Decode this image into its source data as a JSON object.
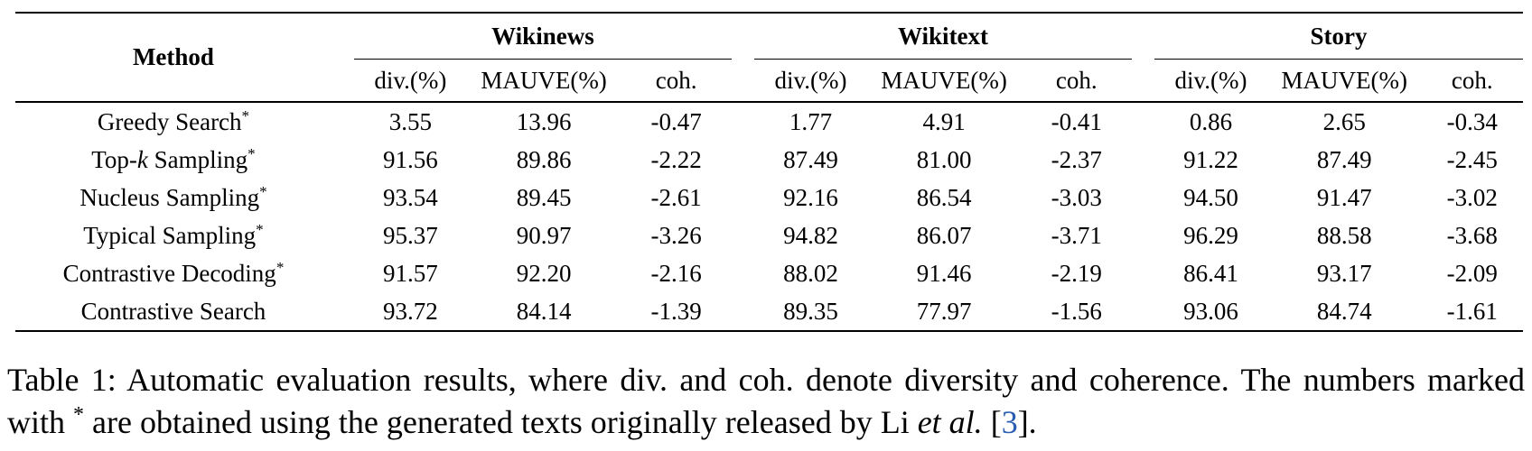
{
  "table": {
    "method_header": "Method",
    "groups": [
      "Wikinews",
      "Wikitext",
      "Story"
    ],
    "sub_headers": [
      "div.(%)",
      "MAUVE(%)",
      "coh."
    ],
    "rows": [
      {
        "method": "Greedy Search",
        "star": "*",
        "values": [
          "3.55",
          "13.96",
          "-0.47",
          "1.77",
          "4.91",
          "-0.41",
          "0.86",
          "2.65",
          "-0.34"
        ],
        "bold": [
          false,
          false,
          true,
          false,
          false,
          true,
          false,
          false,
          true
        ]
      },
      {
        "method": "Top-k Sampling",
        "star": "*",
        "values": [
          "91.56",
          "89.86",
          "-2.22",
          "87.49",
          "81.00",
          "-2.37",
          "91.22",
          "87.49",
          "-2.45"
        ],
        "bold": [
          false,
          false,
          false,
          false,
          false,
          false,
          false,
          false,
          false
        ]
      },
      {
        "method": "Nucleus Sampling",
        "star": "*",
        "values": [
          "93.54",
          "89.45",
          "-2.61",
          "92.16",
          "86.54",
          "-3.03",
          "94.50",
          "91.47",
          "-3.02"
        ],
        "bold": [
          false,
          false,
          false,
          false,
          false,
          false,
          false,
          false,
          false
        ]
      },
      {
        "method": "Typical Sampling",
        "star": "*",
        "values": [
          "95.37",
          "90.97",
          "-3.26",
          "94.82",
          "86.07",
          "-3.71",
          "96.29",
          "88.58",
          "-3.68"
        ],
        "bold": [
          true,
          false,
          false,
          true,
          false,
          false,
          true,
          false,
          false
        ]
      },
      {
        "method": "Contrastive Decoding",
        "star": "*",
        "values": [
          "91.57",
          "92.20",
          "-2.16",
          "88.02",
          "91.46",
          "-2.19",
          "86.41",
          "93.17",
          "-2.09"
        ],
        "bold": [
          false,
          true,
          false,
          false,
          true,
          false,
          false,
          true,
          false
        ]
      },
      {
        "method": "Contrastive Search",
        "star": "",
        "values": [
          "93.72",
          "84.14",
          "-1.39",
          "89.35",
          "77.97",
          "-1.56",
          "93.06",
          "84.74",
          "-1.61"
        ],
        "bold": [
          false,
          false,
          false,
          false,
          false,
          false,
          false,
          false,
          false
        ]
      }
    ]
  },
  "caption": {
    "label": "Table 1:",
    "text_1": "Automatic evaluation results, where div. and coh. denote diversity and coherence. The numbers marked with",
    "star": "*",
    "text_2": "are obtained using the generated texts originally released by Li",
    "et_al": "et al.",
    "ref_open": "[",
    "ref": "3",
    "ref_close": "]."
  },
  "colors": {
    "text": "#000000",
    "reference_link": "#2a5db0"
  }
}
